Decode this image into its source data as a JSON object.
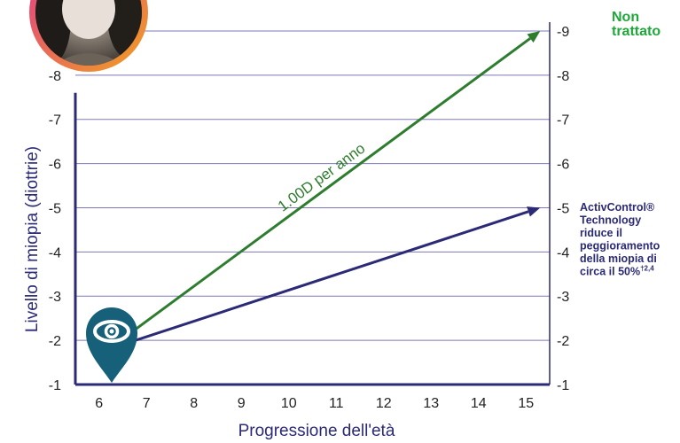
{
  "chart_data": {
    "type": "line",
    "xlabel": "Progressione dell'età",
    "ylabel": "Livello di miopia (diottrie)",
    "x_ticks": [
      "6",
      "7",
      "8",
      "9",
      "10",
      "11",
      "12",
      "13",
      "14",
      "15"
    ],
    "y_ticks_left": [
      "-1",
      "-2",
      "-3",
      "-4",
      "-5",
      "-6",
      "-7",
      "-8"
    ],
    "y_ticks_right": [
      "-1",
      "-2",
      "-3",
      "-4",
      "-5",
      "-6",
      "-7",
      "-8",
      "-9"
    ],
    "xlim": [
      5.5,
      15.5
    ],
    "ylim": [
      -1,
      -9.2
    ],
    "grid": true,
    "series": [
      {
        "name": "Non trattato",
        "label_lines": [
          "Non",
          "trattato"
        ],
        "color": "#2e7d2e",
        "label_color": "#1fa83a",
        "points": [
          {
            "x": 6.2,
            "y": -1.8
          },
          {
            "x": 15.3,
            "y": -9.0
          }
        ]
      },
      {
        "name": "ActivControl® Technology riduce il peggioramento della miopia di circa il 50%",
        "label_lines": [
          "ActivControl®",
          "Technology",
          "riduce il",
          "peggioramento",
          "della miopia di",
          "circa il 50%"
        ],
        "label_superscript": "†2,4",
        "color": "#2b2a77",
        "points": [
          {
            "x": 6.2,
            "y": -1.8
          },
          {
            "x": 15.3,
            "y": -5.0
          }
        ]
      }
    ],
    "annotations": [
      {
        "text": "1.00D per anno",
        "color": "#2e7d2e"
      }
    ],
    "colors": {
      "axis": "#2b2a77",
      "grid": "#7e78b8",
      "marker": "#17607a",
      "photo_ring_start": "#e23b8b",
      "photo_ring_end": "#f0a020"
    },
    "icons": [
      "eye-location-marker-icon",
      "child-photo"
    ]
  }
}
